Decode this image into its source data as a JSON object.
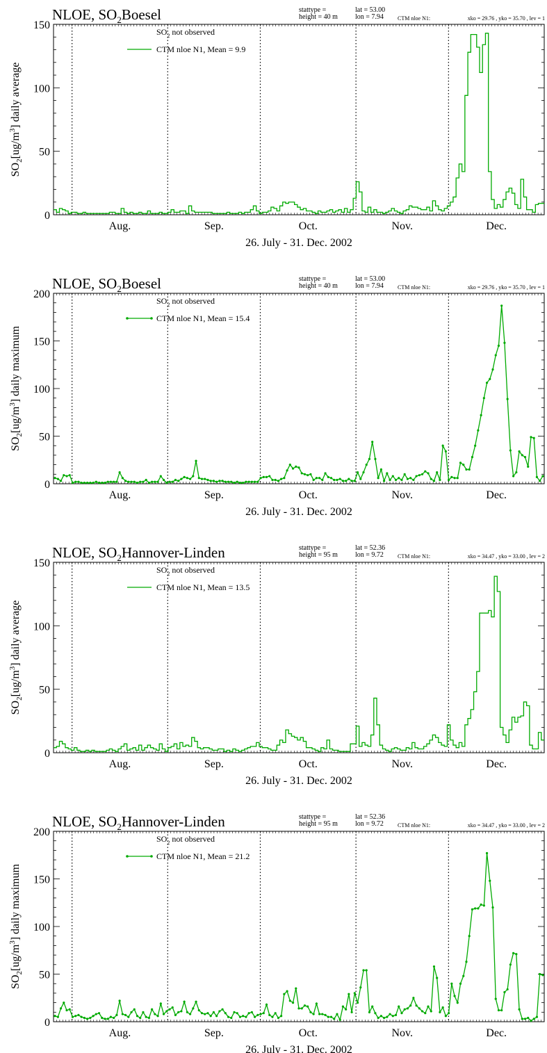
{
  "page": {
    "x_axis_months": [
      "Aug.",
      "Sep.",
      "Oct.",
      "Nov.",
      "Dec."
    ]
  },
  "chart_data": [
    {
      "type": "line",
      "step": true,
      "markers": false,
      "title": "NLOE, SO2  Boesel",
      "title_prefix": "NLOE, SO",
      "title_sub": "2",
      "title_station": "Boesel",
      "meta": {
        "stattype": "stattype =",
        "height": "height = 40 m",
        "lat": "lat = 53.00",
        "lon": "lon = 7.94",
        "model": "CTM nloe N1:",
        "grid": "xko = 29.76 , yko = 35.70 , lev = 1"
      },
      "ylabel_prefix": "SO",
      "ylabel_sub": "2",
      "ylabel_mid": "[ug/m",
      "ylabel_sup": "3",
      "ylabel_suffix": "] daily average",
      "xlabel": "26. July -  31. Dec. 2002",
      "ylim": [
        0,
        150
      ],
      "yticks": [
        0,
        50,
        100,
        150
      ],
      "legend_obs_prefix": "SO",
      "legend_obs_sub": "2",
      "legend_obs_suffix": " not observed",
      "series": [
        {
          "name": "CTM nloe N1, Mean = 9.9",
          "color": "#00aa00",
          "values": [
            4,
            2,
            5,
            4,
            3,
            1,
            2,
            2,
            1,
            1,
            2,
            1,
            1,
            1,
            1,
            1,
            1,
            1,
            1,
            2,
            2,
            1,
            1,
            5,
            2,
            1,
            2,
            1,
            1,
            2,
            1,
            1,
            3,
            1,
            1,
            1,
            2,
            1,
            1,
            2,
            4,
            2,
            2,
            3,
            3,
            1,
            7,
            3,
            2,
            2,
            2,
            2,
            2,
            2,
            1,
            1,
            1,
            1,
            1,
            2,
            1,
            1,
            1,
            2,
            1,
            2,
            2,
            4,
            7,
            3,
            1,
            2,
            2,
            3,
            6,
            5,
            3,
            7,
            10,
            9,
            10,
            10,
            8,
            6,
            4,
            5,
            3,
            3,
            2,
            1,
            3,
            2,
            2,
            3,
            4,
            2,
            3,
            4,
            2,
            5,
            2,
            4,
            13,
            26,
            18,
            3,
            2,
            6,
            2,
            4,
            2,
            2,
            1,
            2,
            3,
            5,
            3,
            2,
            1,
            3,
            4,
            7,
            6,
            6,
            5,
            4,
            4,
            6,
            3,
            11,
            7,
            4,
            3,
            5,
            7,
            10,
            14,
            29,
            40,
            34,
            94,
            128,
            142,
            142,
            132,
            112,
            134,
            143,
            34,
            12,
            5,
            8,
            6,
            12,
            18,
            21,
            17,
            8,
            5,
            28,
            14,
            4,
            4,
            2,
            8,
            9,
            9
          ]
        }
      ]
    },
    {
      "type": "line",
      "step": false,
      "markers": true,
      "title": "NLOE, SO2  Boesel",
      "title_prefix": "NLOE, SO",
      "title_sub": "2",
      "title_station": "Boesel",
      "meta": {
        "stattype": "stattype =",
        "height": "height = 40 m",
        "lat": "lat = 53.00",
        "lon": "lon = 7.94",
        "model": "CTM nloe N1:",
        "grid": "xko = 29.76 , yko = 35.70 , lev = 1"
      },
      "ylabel_prefix": "SO",
      "ylabel_sub": "2",
      "ylabel_mid": "[ug/m",
      "ylabel_sup": "3",
      "ylabel_suffix": "] daily maximum",
      "xlabel": "26. July -  31. Dec. 2002",
      "ylim": [
        0,
        200
      ],
      "yticks": [
        0,
        50,
        100,
        150,
        200
      ],
      "legend_obs_prefix": "SO",
      "legend_obs_sub": "2",
      "legend_obs_suffix": " not observed",
      "series": [
        {
          "name": "CTM nloe N1, Mean = 15.4",
          "color": "#00aa00",
          "values": [
            6,
            5,
            3,
            9,
            8,
            9,
            1,
            2,
            2,
            1,
            1,
            1,
            1,
            1,
            2,
            1,
            1,
            1,
            2,
            2,
            2,
            2,
            12,
            6,
            3,
            2,
            2,
            2,
            1,
            2,
            2,
            4,
            1,
            2,
            2,
            2,
            8,
            4,
            1,
            2,
            2,
            4,
            3,
            5,
            7,
            6,
            5,
            8,
            24,
            6,
            5,
            5,
            4,
            3,
            3,
            2,
            3,
            3,
            2,
            2,
            2,
            1,
            2,
            1,
            1,
            2,
            2,
            2,
            2,
            2,
            6,
            7,
            7,
            8,
            4,
            4,
            3,
            5,
            6,
            14,
            20,
            16,
            18,
            17,
            11,
            10,
            9,
            10,
            4,
            6,
            6,
            4,
            11,
            7,
            6,
            4,
            4,
            5,
            3,
            3,
            5,
            3,
            3,
            12,
            5,
            12,
            20,
            26,
            44,
            26,
            6,
            15,
            3,
            11,
            4,
            8,
            4,
            6,
            4,
            10,
            5,
            6,
            4,
            8,
            9,
            10,
            13,
            11,
            5,
            3,
            12,
            4,
            40,
            34,
            4,
            7,
            6,
            6,
            22,
            20,
            15,
            15,
            28,
            40,
            56,
            72,
            90,
            106,
            110,
            120,
            135,
            145,
            187,
            148,
            89,
            35,
            8,
            12,
            34,
            30,
            28,
            18,
            49,
            48,
            7,
            3,
            8
          ]
        }
      ]
    },
    {
      "type": "line",
      "step": true,
      "markers": false,
      "title": "NLOE, SO2  Hannover-Linden",
      "title_prefix": "NLOE, SO",
      "title_sub": "2",
      "title_station": "Hannover-Linden",
      "meta": {
        "stattype": "stattype =",
        "height": "height = 95 m",
        "lat": "lat = 52.36",
        "lon": "lon = 9.72",
        "model": "CTM nloe N1:",
        "grid": "xko = 34.47 , yko = 33.00 , lev = 2"
      },
      "ylabel_prefix": "SO",
      "ylabel_sub": "2",
      "ylabel_mid": "[ug/m",
      "ylabel_sup": "3",
      "ylabel_suffix": "] daily average",
      "xlabel": "26. July -  31. Dec. 2002",
      "ylim": [
        0,
        150
      ],
      "yticks": [
        0,
        50,
        100,
        150
      ],
      "legend_obs_prefix": "SO",
      "legend_obs_sub": "2",
      "legend_obs_suffix": " not observed",
      "series": [
        {
          "name": "CTM nloe N1, Mean = 13.5",
          "color": "#00aa00",
          "values": [
            4,
            5,
            9,
            7,
            4,
            3,
            2,
            4,
            2,
            1,
            1,
            2,
            1,
            2,
            1,
            1,
            1,
            1,
            2,
            3,
            2,
            1,
            3,
            5,
            7,
            2,
            3,
            4,
            2,
            6,
            2,
            4,
            6,
            4,
            3,
            2,
            7,
            3,
            1,
            4,
            5,
            7,
            3,
            8,
            5,
            6,
            5,
            12,
            9,
            4,
            3,
            4,
            4,
            3,
            2,
            2,
            3,
            3,
            1,
            2,
            1,
            3,
            2,
            1,
            2,
            3,
            4,
            5,
            5,
            8,
            5,
            4,
            4,
            3,
            2,
            2,
            6,
            10,
            8,
            18,
            15,
            13,
            12,
            10,
            12,
            9,
            4,
            4,
            3,
            2,
            1,
            4,
            3,
            10,
            3,
            2,
            2,
            1,
            1,
            1,
            1,
            7,
            7,
            21,
            5,
            8,
            6,
            5,
            14,
            43,
            22,
            6,
            3,
            2,
            1,
            3,
            4,
            3,
            2,
            2,
            4,
            3,
            8,
            4,
            3,
            3,
            5,
            7,
            10,
            14,
            12,
            8,
            6,
            5,
            22,
            10,
            6,
            4,
            8,
            5,
            22,
            27,
            34,
            48,
            64,
            110,
            110,
            110,
            112,
            107,
            139,
            127,
            20,
            14,
            8,
            18,
            28,
            24,
            28,
            29,
            40,
            37,
            6,
            3,
            3,
            16,
            10
          ]
        }
      ]
    },
    {
      "type": "line",
      "step": false,
      "markers": true,
      "title": "NLOE, SO2  Hannover-Linden",
      "title_prefix": "NLOE, SO",
      "title_sub": "2",
      "title_station": "Hannover-Linden",
      "meta": {
        "stattype": "stattype =",
        "height": "height = 95 m",
        "lat": "lat = 52.36",
        "lon": "lon = 9.72",
        "model": "CTM nloe N1:",
        "grid": "xko = 34.47 , yko = 33.00 , lev = 2"
      },
      "ylabel_prefix": "SO",
      "ylabel_sub": "2",
      "ylabel_mid": "[ug/m",
      "ylabel_sup": "3",
      "ylabel_suffix": "] daily maximum",
      "xlabel": "26. July -  31. Dec. 2002",
      "ylim": [
        0,
        200
      ],
      "yticks": [
        0,
        50,
        100,
        150,
        200
      ],
      "legend_obs_prefix": "SO",
      "legend_obs_sub": "2",
      "legend_obs_suffix": " not observed",
      "series": [
        {
          "name": "CTM nloe N1, Mean = 21.2",
          "color": "#00aa00",
          "values": [
            6,
            5,
            14,
            20,
            12,
            13,
            5,
            6,
            7,
            5,
            4,
            3,
            4,
            6,
            8,
            9,
            4,
            3,
            3,
            5,
            4,
            7,
            22,
            8,
            7,
            5,
            10,
            13,
            6,
            4,
            10,
            5,
            4,
            13,
            8,
            6,
            19,
            8,
            11,
            13,
            15,
            7,
            10,
            11,
            21,
            10,
            8,
            14,
            21,
            12,
            9,
            8,
            9,
            6,
            10,
            6,
            11,
            13,
            9,
            5,
            4,
            10,
            9,
            5,
            6,
            5,
            9,
            10,
            5,
            7,
            8,
            9,
            18,
            7,
            5,
            9,
            4,
            6,
            29,
            32,
            22,
            20,
            35,
            14,
            14,
            17,
            16,
            10,
            8,
            19,
            8,
            8,
            7,
            5,
            5,
            3,
            8,
            2,
            16,
            13,
            29,
            10,
            30,
            20,
            36,
            54,
            54,
            10,
            16,
            9,
            4,
            6,
            4,
            5,
            8,
            6,
            7,
            16,
            9,
            13,
            14,
            17,
            25,
            17,
            14,
            11,
            9,
            16,
            11,
            58,
            46,
            10,
            15,
            6,
            9,
            40,
            27,
            20,
            40,
            48,
            63,
            90,
            118,
            119,
            119,
            123,
            122,
            177,
            148,
            120,
            24,
            12,
            12,
            31,
            34,
            60,
            72,
            71,
            13,
            3,
            3,
            4,
            1,
            3,
            5,
            50,
            49
          ]
        }
      ]
    }
  ]
}
